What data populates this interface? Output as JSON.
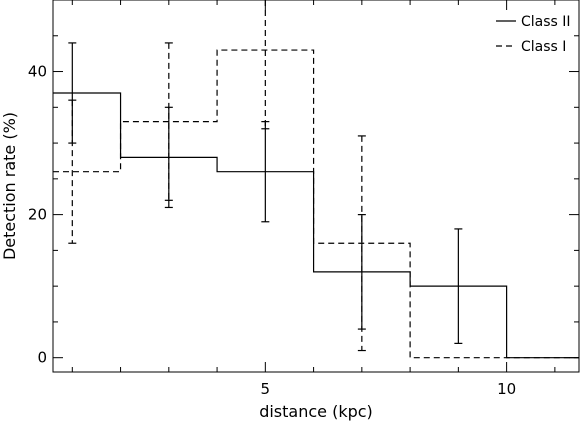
{
  "chart_data": {
    "type": "histogram-step",
    "xlabel": "distance (kpc)",
    "ylabel": "Detection rate (%)",
    "xlim": [
      0.6,
      11.5
    ],
    "ylim": [
      -2,
      50
    ],
    "x_ticks": [
      5,
      10
    ],
    "y_ticks": [
      0,
      20,
      40
    ],
    "legend_position": "top-right",
    "bin_edges": [
      0.6,
      2,
      4,
      6,
      8,
      10,
      11.5
    ],
    "series": [
      {
        "name": "Class II",
        "line_style": "solid",
        "color": "#000000",
        "bins": [
          [
            0.6,
            2
          ],
          [
            2,
            4
          ],
          [
            4,
            6
          ],
          [
            6,
            8
          ],
          [
            8,
            10
          ],
          [
            10,
            11.5
          ]
        ],
        "values": [
          37,
          28,
          26,
          12,
          10,
          0
        ],
        "error_x": [
          1,
          3,
          5,
          7,
          9
        ],
        "error_low": [
          30,
          21,
          19,
          4,
          2
        ],
        "error_high": [
          44,
          35,
          33,
          20,
          18
        ]
      },
      {
        "name": "Class I",
        "line_style": "dashed",
        "color": "#000000",
        "bins": [
          [
            0.6,
            2
          ],
          [
            2,
            4
          ],
          [
            4,
            6
          ],
          [
            6,
            8
          ],
          [
            8,
            11.5
          ]
        ],
        "values": [
          26,
          33,
          43,
          16,
          0
        ],
        "error_x": [
          1,
          3,
          5,
          7
        ],
        "error_low": [
          16,
          22,
          32,
          1
        ],
        "error_high": [
          36,
          44,
          54,
          31
        ]
      }
    ]
  }
}
